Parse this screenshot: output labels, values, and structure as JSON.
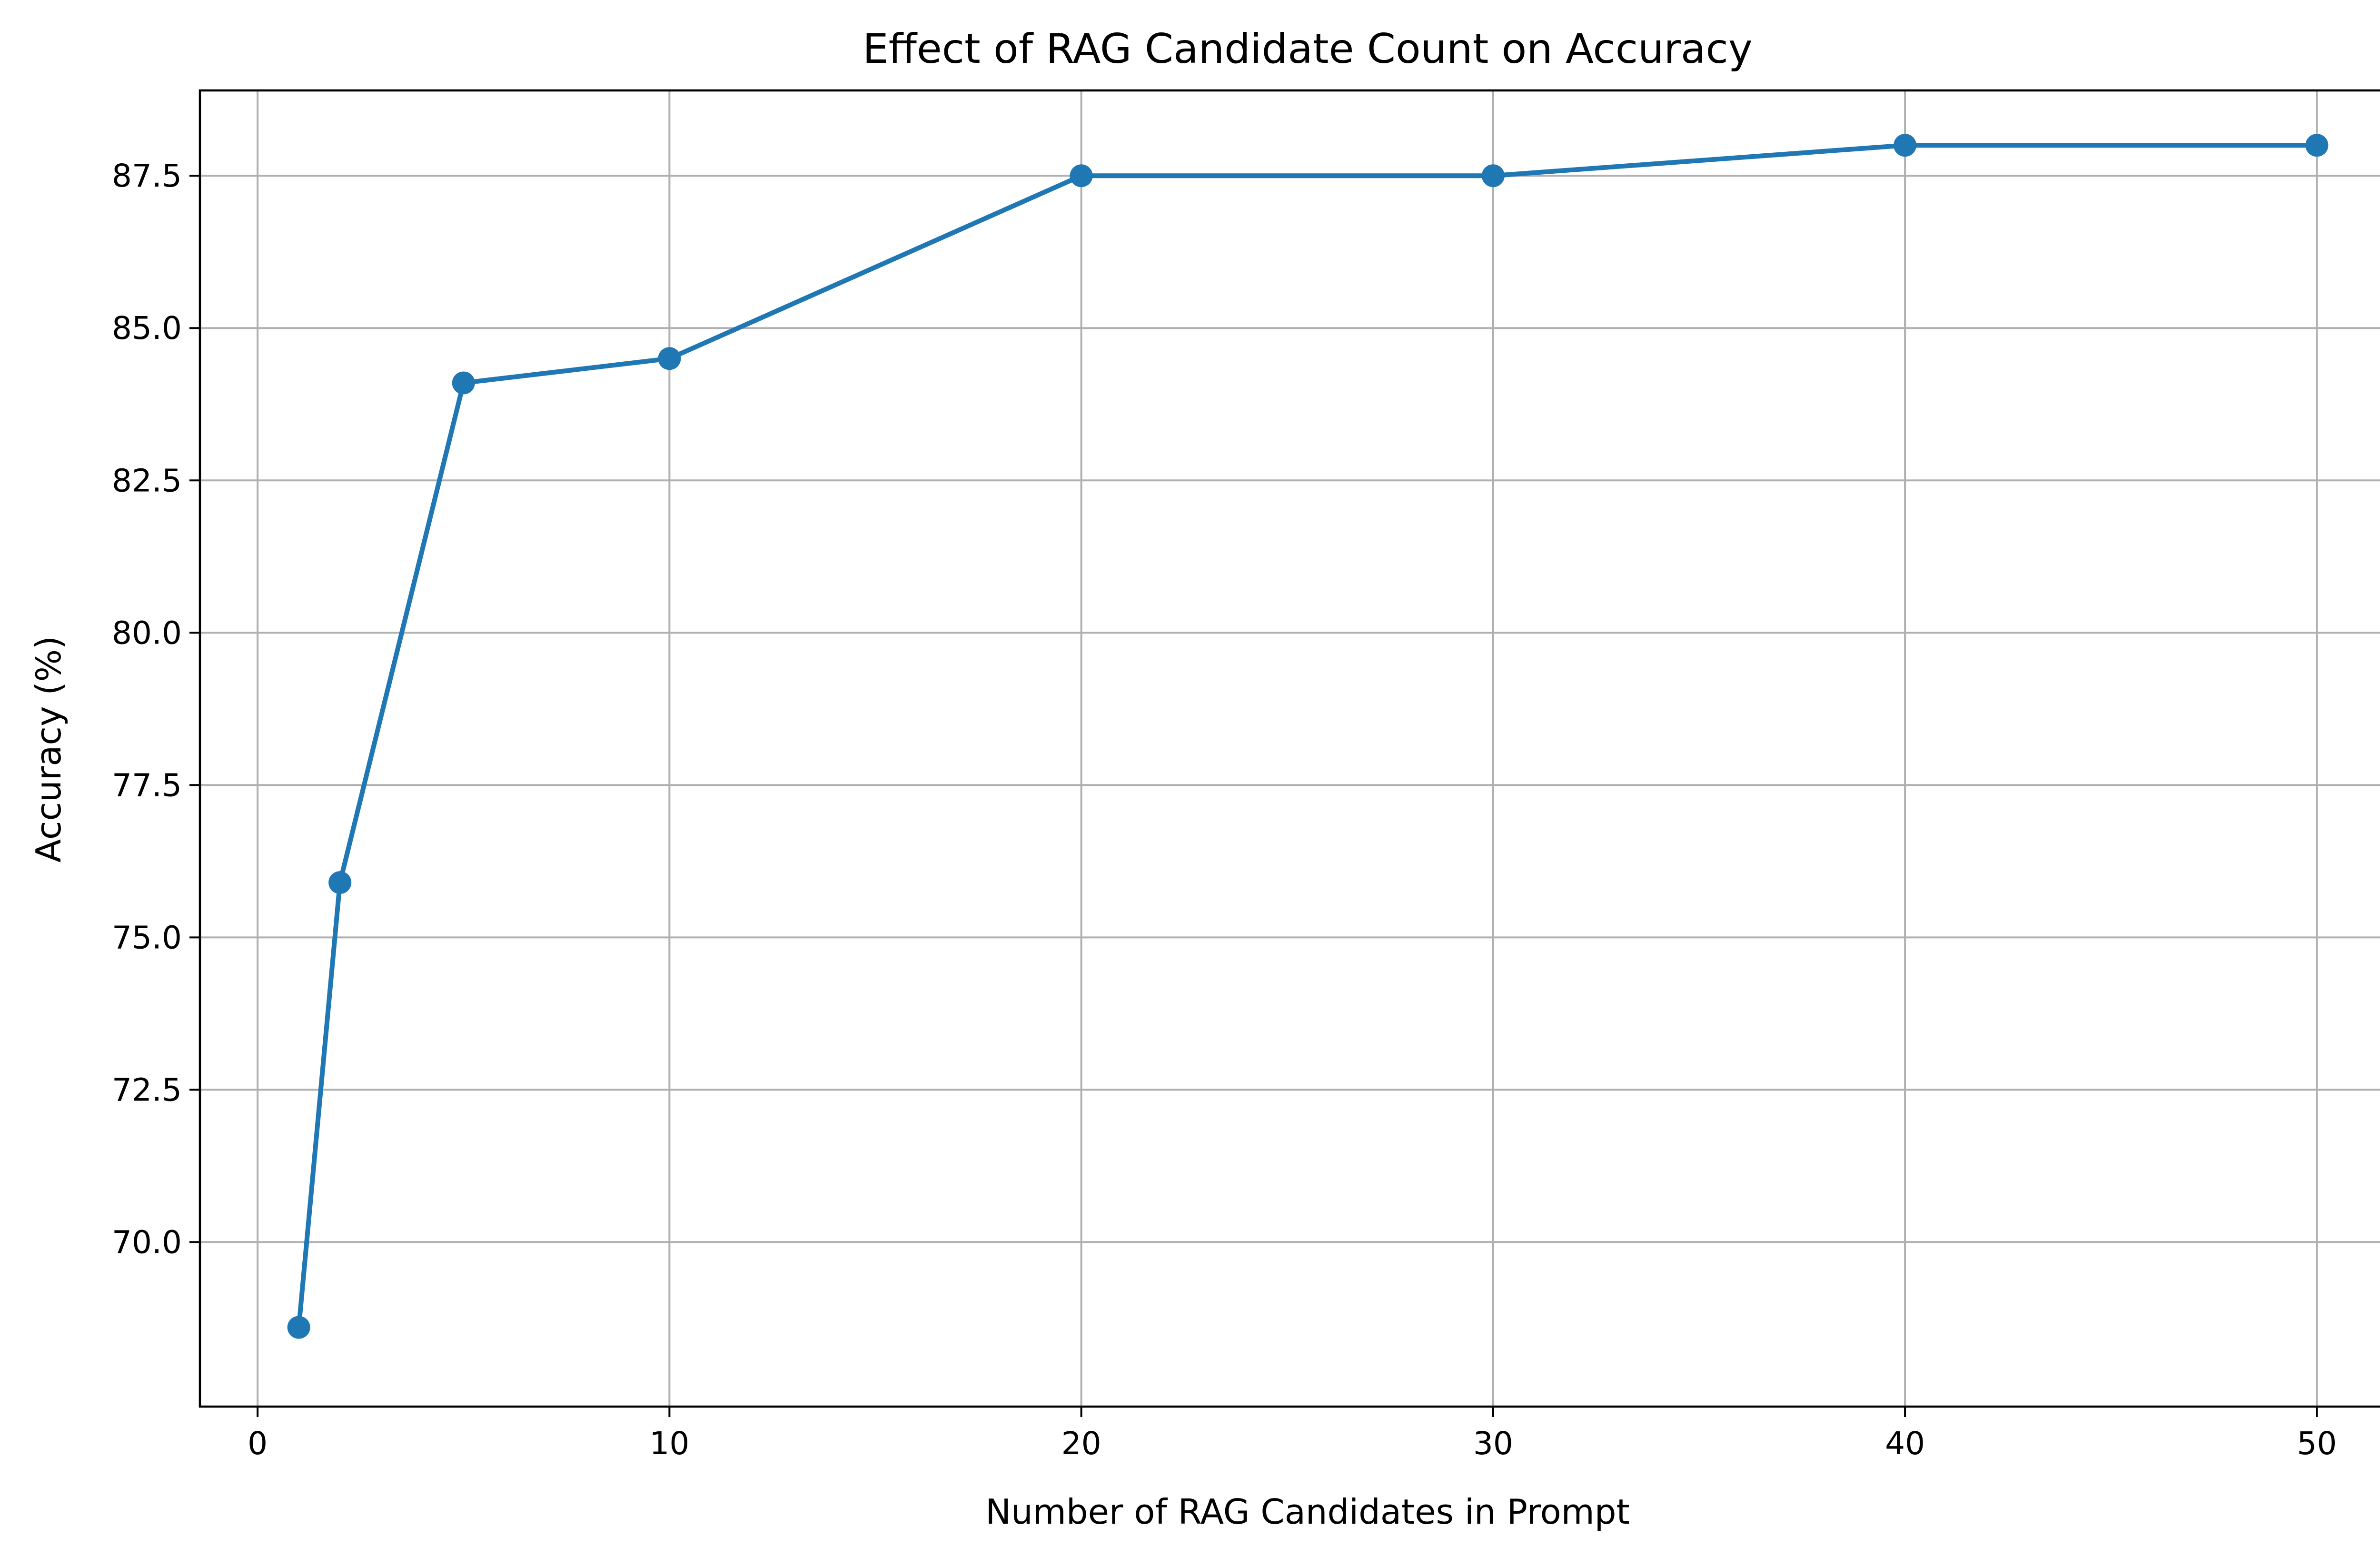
{
  "chart_data": {
    "type": "line",
    "title": "Effect of RAG Candidate Count on Accuracy",
    "xlabel": "Number of RAG Candidates in Prompt",
    "ylabel": "Accuracy (%)",
    "xlim": [
      -1.4,
      52.4
    ],
    "ylim": [
      67.3,
      88.9
    ],
    "grid": true,
    "x_ticks": [
      0,
      10,
      20,
      30,
      40,
      50
    ],
    "x_tick_labels": [
      "0",
      "10",
      "20",
      "30",
      "40",
      "50"
    ],
    "y_ticks": [
      70.0,
      72.5,
      75.0,
      77.5,
      80.0,
      82.5,
      85.0,
      87.5
    ],
    "y_tick_labels": [
      "70.0",
      "72.5",
      "75.0",
      "77.5",
      "80.0",
      "82.5",
      "85.0",
      "87.5"
    ],
    "series": [
      {
        "color": "#1f77b4",
        "marker": "circle",
        "x": [
          1,
          2,
          5,
          10,
          20,
          30,
          40,
          50
        ],
        "y": [
          68.6,
          75.9,
          84.1,
          84.5,
          87.5,
          87.5,
          88.0,
          88.0
        ]
      }
    ]
  }
}
